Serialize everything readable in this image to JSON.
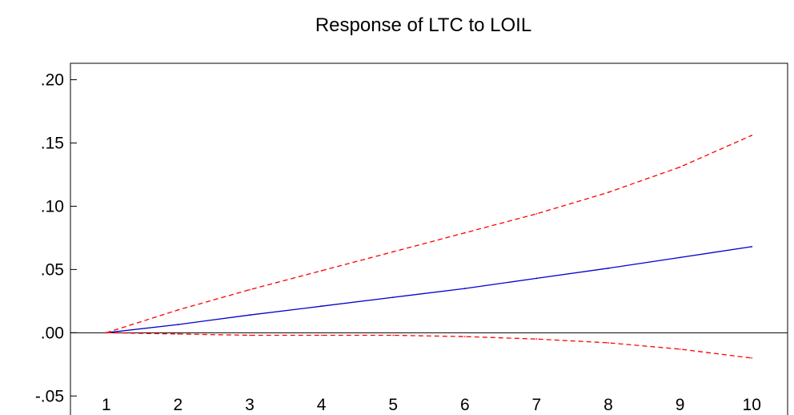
{
  "chart_data": {
    "type": "line",
    "title": "Response of LTC to LOIL",
    "xlabel": "",
    "ylabel": "",
    "x": [
      1,
      2,
      3,
      4,
      5,
      6,
      7,
      8,
      9,
      10
    ],
    "x_tick_labels": [
      "1",
      "2",
      "3",
      "4",
      "5",
      "6",
      "7",
      "8",
      "9",
      "10"
    ],
    "y_tick_labels": [
      ".20",
      ".15",
      ".10",
      ".05",
      ".00",
      "-.05"
    ],
    "y_ticks": [
      0.2,
      0.15,
      0.1,
      0.05,
      0.0,
      -0.05
    ],
    "ylim": [
      -0.072,
      0.213
    ],
    "xlim": [
      0.5,
      10.5
    ],
    "grid": false,
    "zero_line": true,
    "series": [
      {
        "role": "response",
        "color": "#0000cc",
        "style": "solid",
        "values": [
          0.0,
          0.0065,
          0.014,
          0.021,
          0.028,
          0.035,
          0.043,
          0.051,
          0.0595,
          0.068
        ]
      },
      {
        "role": "upper-band",
        "color": "#ff0000",
        "style": "dashed",
        "values": [
          0.0,
          0.018,
          0.034,
          0.049,
          0.064,
          0.079,
          0.094,
          0.111,
          0.131,
          0.156
        ]
      },
      {
        "role": "lower-band",
        "color": "#ff0000",
        "style": "dashed",
        "values": [
          0.0,
          -0.001,
          -0.002,
          -0.002,
          -0.002,
          -0.003,
          -0.005,
          -0.008,
          -0.013,
          -0.02
        ]
      }
    ]
  }
}
